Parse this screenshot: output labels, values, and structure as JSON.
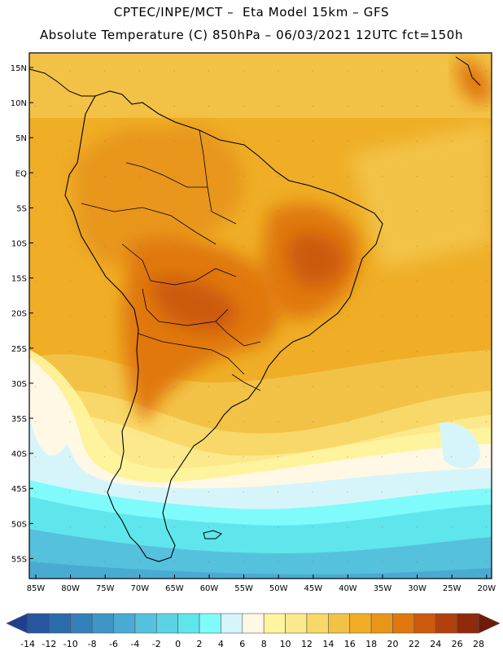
{
  "header": {
    "line1": "CPTEC/INPE/MCT –  Eta Model 15km – GFS",
    "line2": "Absolute Temperature (C) 850hPa – 06/03/2021 12UTC fct=150h"
  },
  "map": {
    "lat_labels": [
      "15N",
      "10N",
      "5N",
      "EQ",
      "5S",
      "10S",
      "15S",
      "20S",
      "25S",
      "30S",
      "35S",
      "40S",
      "45S",
      "50S",
      "55S"
    ],
    "lon_labels": [
      "85W",
      "80W",
      "75W",
      "70W",
      "65W",
      "60W",
      "55W",
      "50W",
      "45W",
      "40W",
      "35W",
      "30W",
      "25W",
      "20W"
    ]
  },
  "colorbar": {
    "labels": [
      "-14",
      "-12",
      "-10",
      "-8",
      "-6",
      "-4",
      "-2",
      "0",
      "2",
      "4",
      "6",
      "8",
      "10",
      "12",
      "14",
      "16",
      "18",
      "20",
      "22",
      "24",
      "26",
      "28"
    ],
    "colors": [
      "#1f3f8f",
      "#25569e",
      "#2c6bab",
      "#3580b8",
      "#3f95c5",
      "#4aabd2",
      "#55c1dc",
      "#5ad4e4",
      "#5fe6ec",
      "#7ffbfb",
      "#d5f5fb",
      "#fff8e4",
      "#fff5a0",
      "#fce98c",
      "#f8d868",
      "#f2c247",
      "#efae26",
      "#e8961a",
      "#e07810",
      "#cc5a0e",
      "#b2400c",
      "#8f2a0a",
      "#6e1b08"
    ]
  }
}
